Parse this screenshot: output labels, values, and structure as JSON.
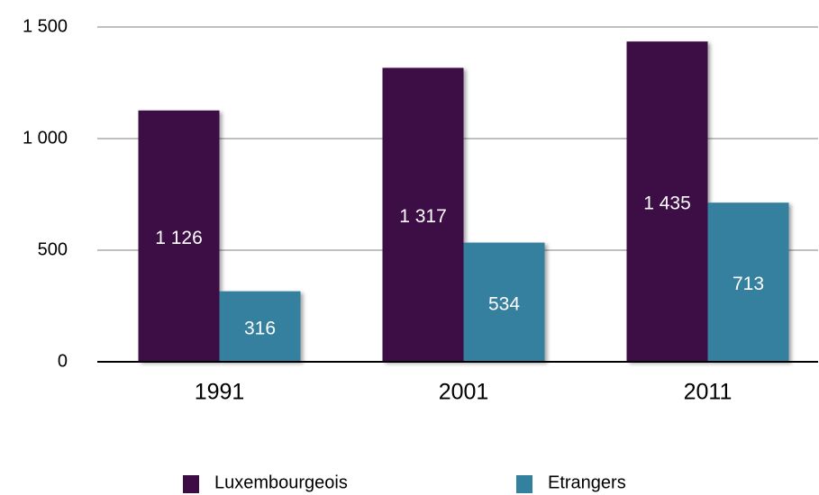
{
  "chart_data": {
    "type": "bar",
    "categories": [
      "1991",
      "2001",
      "2011"
    ],
    "series": [
      {
        "name": "Luxembourgeois",
        "color": "#3d0c45",
        "values": [
          1126,
          1317,
          1435
        ],
        "value_labels": [
          "1 126",
          "1 317",
          "1 435"
        ]
      },
      {
        "name": "Etrangers",
        "color": "#34809f",
        "values": [
          316,
          534,
          713
        ],
        "value_labels": [
          "316",
          "534",
          "713"
        ]
      }
    ],
    "ylim": [
      0,
      1500
    ],
    "yticks": [
      0,
      500,
      {
        "value": 1000,
        "label": "1 000"
      },
      {
        "value": 1500,
        "label": "1 500"
      }
    ],
    "grid": true,
    "legend": "bottom"
  }
}
